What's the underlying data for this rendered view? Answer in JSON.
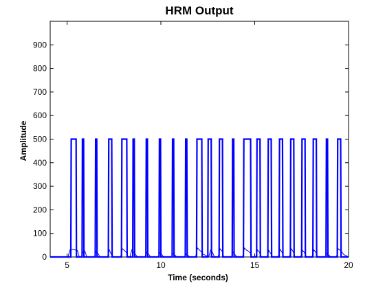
{
  "chart_data": {
    "type": "line",
    "title": "HRM Output",
    "xlabel": "Time (seconds)",
    "ylabel": "Amplitude",
    "xlim": [
      4.1,
      20
    ],
    "ylim": [
      0,
      1000
    ],
    "xticks": [
      5,
      10,
      15,
      20
    ],
    "yticks": [
      0,
      100,
      200,
      300,
      400,
      500,
      600,
      700,
      800,
      900
    ],
    "grid": false,
    "series": [
      {
        "color": "#0000ff",
        "style": "thick",
        "baseline": 0,
        "high": 500,
        "pulses": [
          [
            5.2,
            5.5
          ],
          [
            5.8,
            5.9
          ],
          [
            6.5,
            6.6
          ],
          [
            7.2,
            7.4
          ],
          [
            7.9,
            8.2
          ],
          [
            8.5,
            8.6
          ],
          [
            9.2,
            9.3
          ],
          [
            9.9,
            10.0
          ],
          [
            10.6,
            10.7
          ],
          [
            11.3,
            11.4
          ],
          [
            11.9,
            12.2
          ],
          [
            12.5,
            12.7
          ],
          [
            13.1,
            13.3
          ],
          [
            13.8,
            13.9
          ],
          [
            14.4,
            14.8
          ],
          [
            15.1,
            15.3
          ],
          [
            15.7,
            15.9
          ],
          [
            16.3,
            16.5
          ],
          [
            16.9,
            17.1
          ],
          [
            17.5,
            17.7
          ],
          [
            18.1,
            18.3
          ],
          [
            18.8,
            18.9
          ],
          [
            19.4,
            19.6
          ]
        ]
      },
      {
        "color": "#0000ff",
        "style": "thin",
        "x": [
          4.1,
          5.05,
          5.15,
          5.3,
          5.55,
          5.65,
          5.75,
          5.85,
          5.95,
          6.05,
          6.45,
          6.55,
          6.65,
          6.75,
          7.15,
          7.25,
          7.35,
          7.45,
          7.85,
          7.95,
          8.05,
          8.15,
          8.25,
          8.35,
          8.45,
          8.55,
          8.65,
          8.75,
          9.15,
          9.25,
          9.35,
          9.45,
          9.85,
          9.95,
          10.05,
          10.15,
          10.55,
          10.65,
          10.75,
          10.85,
          11.25,
          11.35,
          11.45,
          11.55,
          11.85,
          11.95,
          12.05,
          12.15,
          12.25,
          12.4,
          12.55,
          12.65,
          12.75,
          12.85,
          13.05,
          13.15,
          13.25,
          13.35,
          13.75,
          13.85,
          13.95,
          14.05,
          14.35,
          14.45,
          14.55,
          14.65,
          14.75,
          14.85,
          15.05,
          15.15,
          15.25,
          15.35,
          15.65,
          15.75,
          15.85,
          15.95,
          16.25,
          16.35,
          16.45,
          16.55,
          16.85,
          16.95,
          17.05,
          17.15,
          17.45,
          17.55,
          17.65,
          17.75,
          18.05,
          18.15,
          18.25,
          18.35,
          18.75,
          18.85,
          18.95,
          19.05,
          19.35,
          19.45,
          19.55,
          19.65,
          19.75,
          20.0
        ],
        "y": [
          0,
          0,
          30,
          32,
          28,
          0,
          0,
          20,
          25,
          0,
          0,
          22,
          15,
          0,
          0,
          30,
          12,
          0,
          0,
          35,
          28,
          20,
          0,
          0,
          30,
          20,
          10,
          0,
          0,
          20,
          12,
          0,
          0,
          18,
          10,
          0,
          0,
          15,
          8,
          0,
          0,
          12,
          6,
          0,
          0,
          38,
          30,
          22,
          12,
          6,
          0,
          30,
          20,
          0,
          0,
          35,
          25,
          0,
          0,
          20,
          10,
          0,
          0,
          38,
          30,
          25,
          18,
          0,
          0,
          30,
          20,
          0,
          0,
          28,
          15,
          0,
          0,
          32,
          20,
          0,
          0,
          35,
          22,
          0,
          0,
          28,
          18,
          0,
          0,
          30,
          20,
          0,
          0,
          15,
          8,
          0,
          0,
          35,
          28,
          20,
          10,
          0
        ]
      }
    ]
  }
}
